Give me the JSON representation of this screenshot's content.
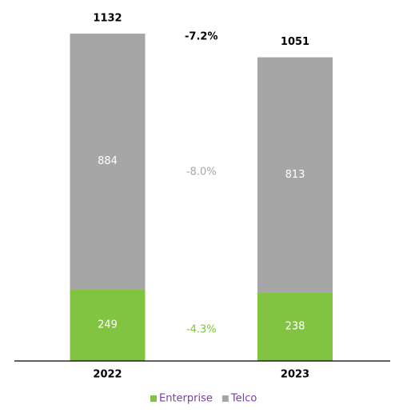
{
  "chart_data": {
    "type": "stacked_bar",
    "categories": [
      "2022",
      "2023"
    ],
    "series": [
      {
        "name": "Enterprise",
        "color": "#82c341",
        "values": [
          249,
          238
        ],
        "change_label": "-4.3%"
      },
      {
        "name": "Telco",
        "color": "#a6a6a6",
        "values": [
          884,
          813
        ],
        "change_label": "-8.0%"
      }
    ],
    "totals": [
      1132,
      1051
    ],
    "total_change_label": "-7.2%",
    "legend": "bottom"
  }
}
